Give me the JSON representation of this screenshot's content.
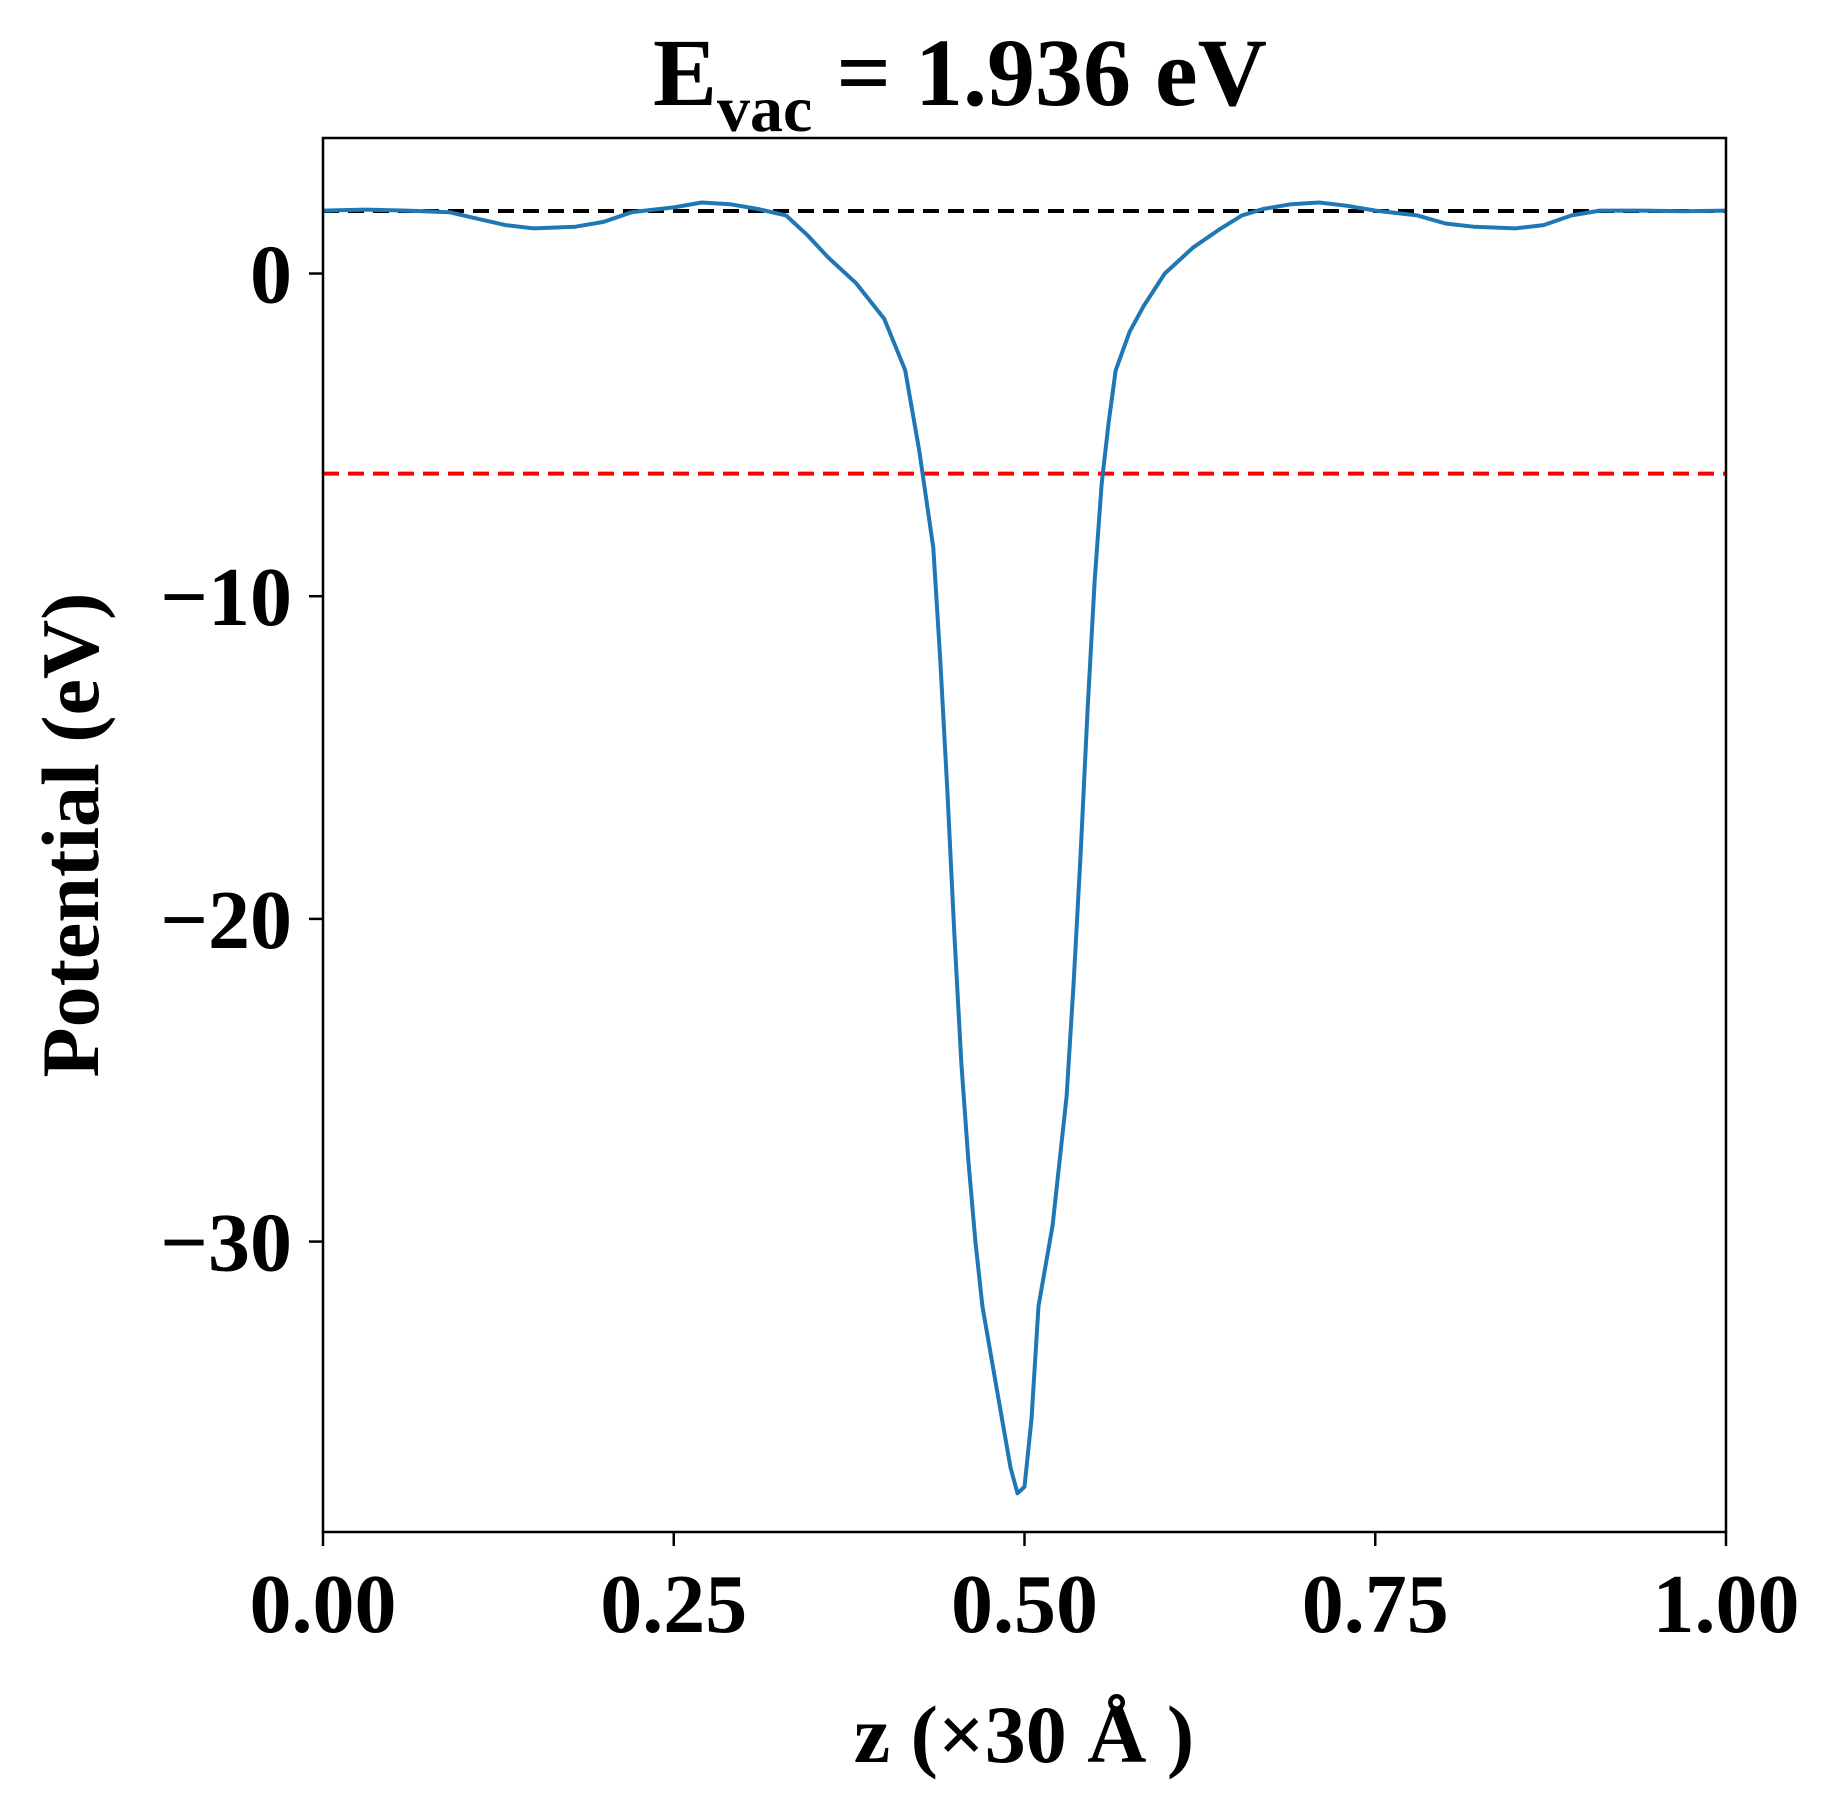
{
  "chart_data": {
    "type": "line",
    "title": {
      "main": "E",
      "subscript": "vac",
      "rest": " = 1.936 eV"
    },
    "xlabel": "z (×30 Å )",
    "ylabel": "Potential (eV)",
    "xlim": [
      0.0,
      1.0
    ],
    "ylim": [
      -39.0,
      4.2
    ],
    "x_ticks": [
      0.0,
      0.25,
      0.5,
      0.75,
      1.0
    ],
    "x_tick_labels": [
      "0.00",
      "0.25",
      "0.50",
      "0.75",
      "1.00"
    ],
    "y_ticks": [
      0,
      -10,
      -20,
      -30
    ],
    "y_tick_labels": [
      "0",
      "−10",
      "−20",
      "−30"
    ],
    "grid": false,
    "legend": "none",
    "reference_lines": [
      {
        "y": 1.936,
        "color": "#000000",
        "style": "dashed"
      },
      {
        "y": -6.2,
        "color": "#ff0000",
        "style": "dashed"
      }
    ],
    "series": [
      {
        "color": "#1f77b4",
        "x": [
          0.0,
          0.03,
          0.06,
          0.09,
          0.11,
          0.13,
          0.15,
          0.18,
          0.2,
          0.22,
          0.25,
          0.27,
          0.29,
          0.31,
          0.33,
          0.345,
          0.36,
          0.38,
          0.4,
          0.415,
          0.425,
          0.435,
          0.44,
          0.445,
          0.45,
          0.455,
          0.46,
          0.465,
          0.47,
          0.48,
          0.49,
          0.495,
          0.5,
          0.505,
          0.51,
          0.52,
          0.53,
          0.535,
          0.54,
          0.545,
          0.55,
          0.555,
          0.56,
          0.565,
          0.575,
          0.585,
          0.6,
          0.62,
          0.64,
          0.655,
          0.67,
          0.69,
          0.71,
          0.73,
          0.75,
          0.78,
          0.8,
          0.82,
          0.85,
          0.87,
          0.89,
          0.91,
          0.94,
          0.97,
          1.0
        ],
        "y": [
          1.95,
          1.98,
          1.95,
          1.9,
          1.7,
          1.5,
          1.4,
          1.45,
          1.6,
          1.9,
          2.05,
          2.2,
          2.15,
          2.0,
          1.8,
          1.2,
          0.5,
          -0.3,
          -1.4,
          -3.0,
          -5.5,
          -8.5,
          -12.0,
          -16.0,
          -20.5,
          -24.5,
          -27.5,
          -30.0,
          -32.0,
          -34.5,
          -37.0,
          -37.8,
          -37.6,
          -35.5,
          -32.0,
          -29.5,
          -25.5,
          -22.0,
          -18.0,
          -13.5,
          -9.5,
          -6.5,
          -4.6,
          -3.0,
          -1.8,
          -1.0,
          0.0,
          0.8,
          1.4,
          1.8,
          2.0,
          2.15,
          2.2,
          2.1,
          1.95,
          1.8,
          1.55,
          1.45,
          1.4,
          1.5,
          1.8,
          1.95,
          1.95,
          1.93,
          1.95
        ]
      }
    ]
  }
}
